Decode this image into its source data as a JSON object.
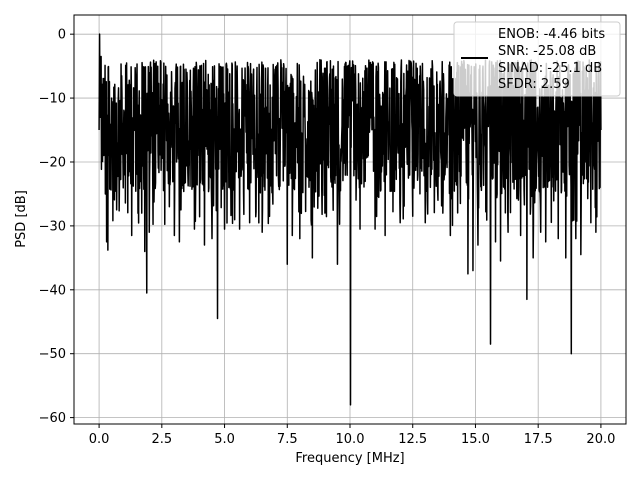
{
  "chart_data": {
    "type": "line",
    "xlabel": "Frequency [MHz]",
    "ylabel": "PSD [dB]",
    "xlim": [
      -1.0,
      21.0
    ],
    "ylim": [
      -61.0,
      3.0
    ],
    "xticks": [
      0.0,
      2.5,
      5.0,
      7.5,
      10.0,
      12.5,
      15.0,
      17.5,
      20.0
    ],
    "xtick_labels": [
      "0.0",
      "2.5",
      "5.0",
      "7.5",
      "10.0",
      "12.5",
      "15.0",
      "17.5",
      "20.0"
    ],
    "yticks": [
      0,
      -10,
      -20,
      -30,
      -40,
      -50,
      -60
    ],
    "ytick_labels": [
      "0",
      "−10",
      "−20",
      "−30",
      "−40",
      "−50",
      "−60"
    ],
    "grid": true,
    "legend": {
      "placement": "upper-right",
      "entries": [
        "ENOB: -4.46 bits",
        "SNR: -25.08 dB",
        "SINAD: -25.1 dB",
        "SFDR: 2.59"
      ]
    },
    "series": [
      {
        "color": "#000000",
        "noise_floor_db": -14.5,
        "noise_band_db": [
          -24.0,
          -5.5
        ],
        "points": [
          [
            0.0,
            -15.0
          ],
          [
            0.02,
            0.0
          ],
          [
            0.05,
            -13.0
          ],
          [
            0.08,
            -3.5
          ],
          [
            0.15,
            -14.0
          ],
          [
            0.25,
            -25.0
          ],
          [
            0.3,
            -32.5
          ],
          [
            0.35,
            -33.8
          ],
          [
            0.5,
            -10.0
          ],
          [
            0.55,
            -29.2
          ],
          [
            0.7,
            -27.5
          ],
          [
            0.9,
            -6.5
          ],
          [
            1.0,
            -22.0
          ],
          [
            1.3,
            -31.5
          ],
          [
            1.5,
            -7.0
          ],
          [
            1.7,
            -28.0
          ],
          [
            1.82,
            -34.0
          ],
          [
            1.9,
            -40.5
          ],
          [
            2.0,
            -31.0
          ],
          [
            2.3,
            -6.0
          ],
          [
            2.8,
            -27.0
          ],
          [
            3.0,
            -31.5
          ],
          [
            3.2,
            -32.5
          ],
          [
            3.5,
            -6.0
          ],
          [
            3.8,
            -30.5
          ],
          [
            4.2,
            -33.0
          ],
          [
            4.5,
            -32.0
          ],
          [
            4.72,
            -44.5
          ],
          [
            5.0,
            -30.5
          ],
          [
            5.6,
            -30.5
          ],
          [
            6.0,
            -29.5
          ],
          [
            6.5,
            -31.0
          ],
          [
            7.0,
            -6.5
          ],
          [
            7.5,
            -36.0
          ],
          [
            7.7,
            -31.5
          ],
          [
            8.0,
            -32.0
          ],
          [
            8.5,
            -35.0
          ],
          [
            8.8,
            -4.0
          ],
          [
            9.0,
            -28.0
          ],
          [
            9.5,
            -36.0
          ],
          [
            9.9,
            -5.0
          ],
          [
            10.02,
            -58.0
          ],
          [
            10.4,
            -30.5
          ],
          [
            10.8,
            -6.0
          ],
          [
            11.0,
            -30.5
          ],
          [
            11.4,
            -31.5
          ],
          [
            11.7,
            -7.0
          ],
          [
            12.0,
            -29.5
          ],
          [
            12.5,
            -28.5
          ],
          [
            12.8,
            -5.0
          ],
          [
            13.0,
            -29.5
          ],
          [
            13.3,
            -8.0
          ],
          [
            13.7,
            -28.0
          ],
          [
            14.0,
            -31.5
          ],
          [
            14.4,
            -26.5
          ],
          [
            14.7,
            -37.5
          ],
          [
            14.9,
            -37.0
          ],
          [
            15.1,
            -33.0
          ],
          [
            15.3,
            -5.0
          ],
          [
            15.6,
            -48.5
          ],
          [
            15.8,
            -32.5
          ],
          [
            16.0,
            -35.5
          ],
          [
            16.3,
            -31.0
          ],
          [
            16.6,
            -4.5
          ],
          [
            16.8,
            -31.5
          ],
          [
            17.05,
            -41.5
          ],
          [
            17.3,
            -35.0
          ],
          [
            17.6,
            -31.0
          ],
          [
            17.8,
            -32.5
          ],
          [
            18.0,
            -6.0
          ],
          [
            18.3,
            -32.0
          ],
          [
            18.6,
            -35.0
          ],
          [
            18.82,
            -50.0
          ],
          [
            19.0,
            -32.0
          ],
          [
            19.2,
            -34.5
          ],
          [
            19.4,
            -8.0
          ],
          [
            19.6,
            -29.5
          ],
          [
            19.8,
            -31.0
          ],
          [
            20.0,
            -15.0
          ]
        ]
      }
    ]
  }
}
